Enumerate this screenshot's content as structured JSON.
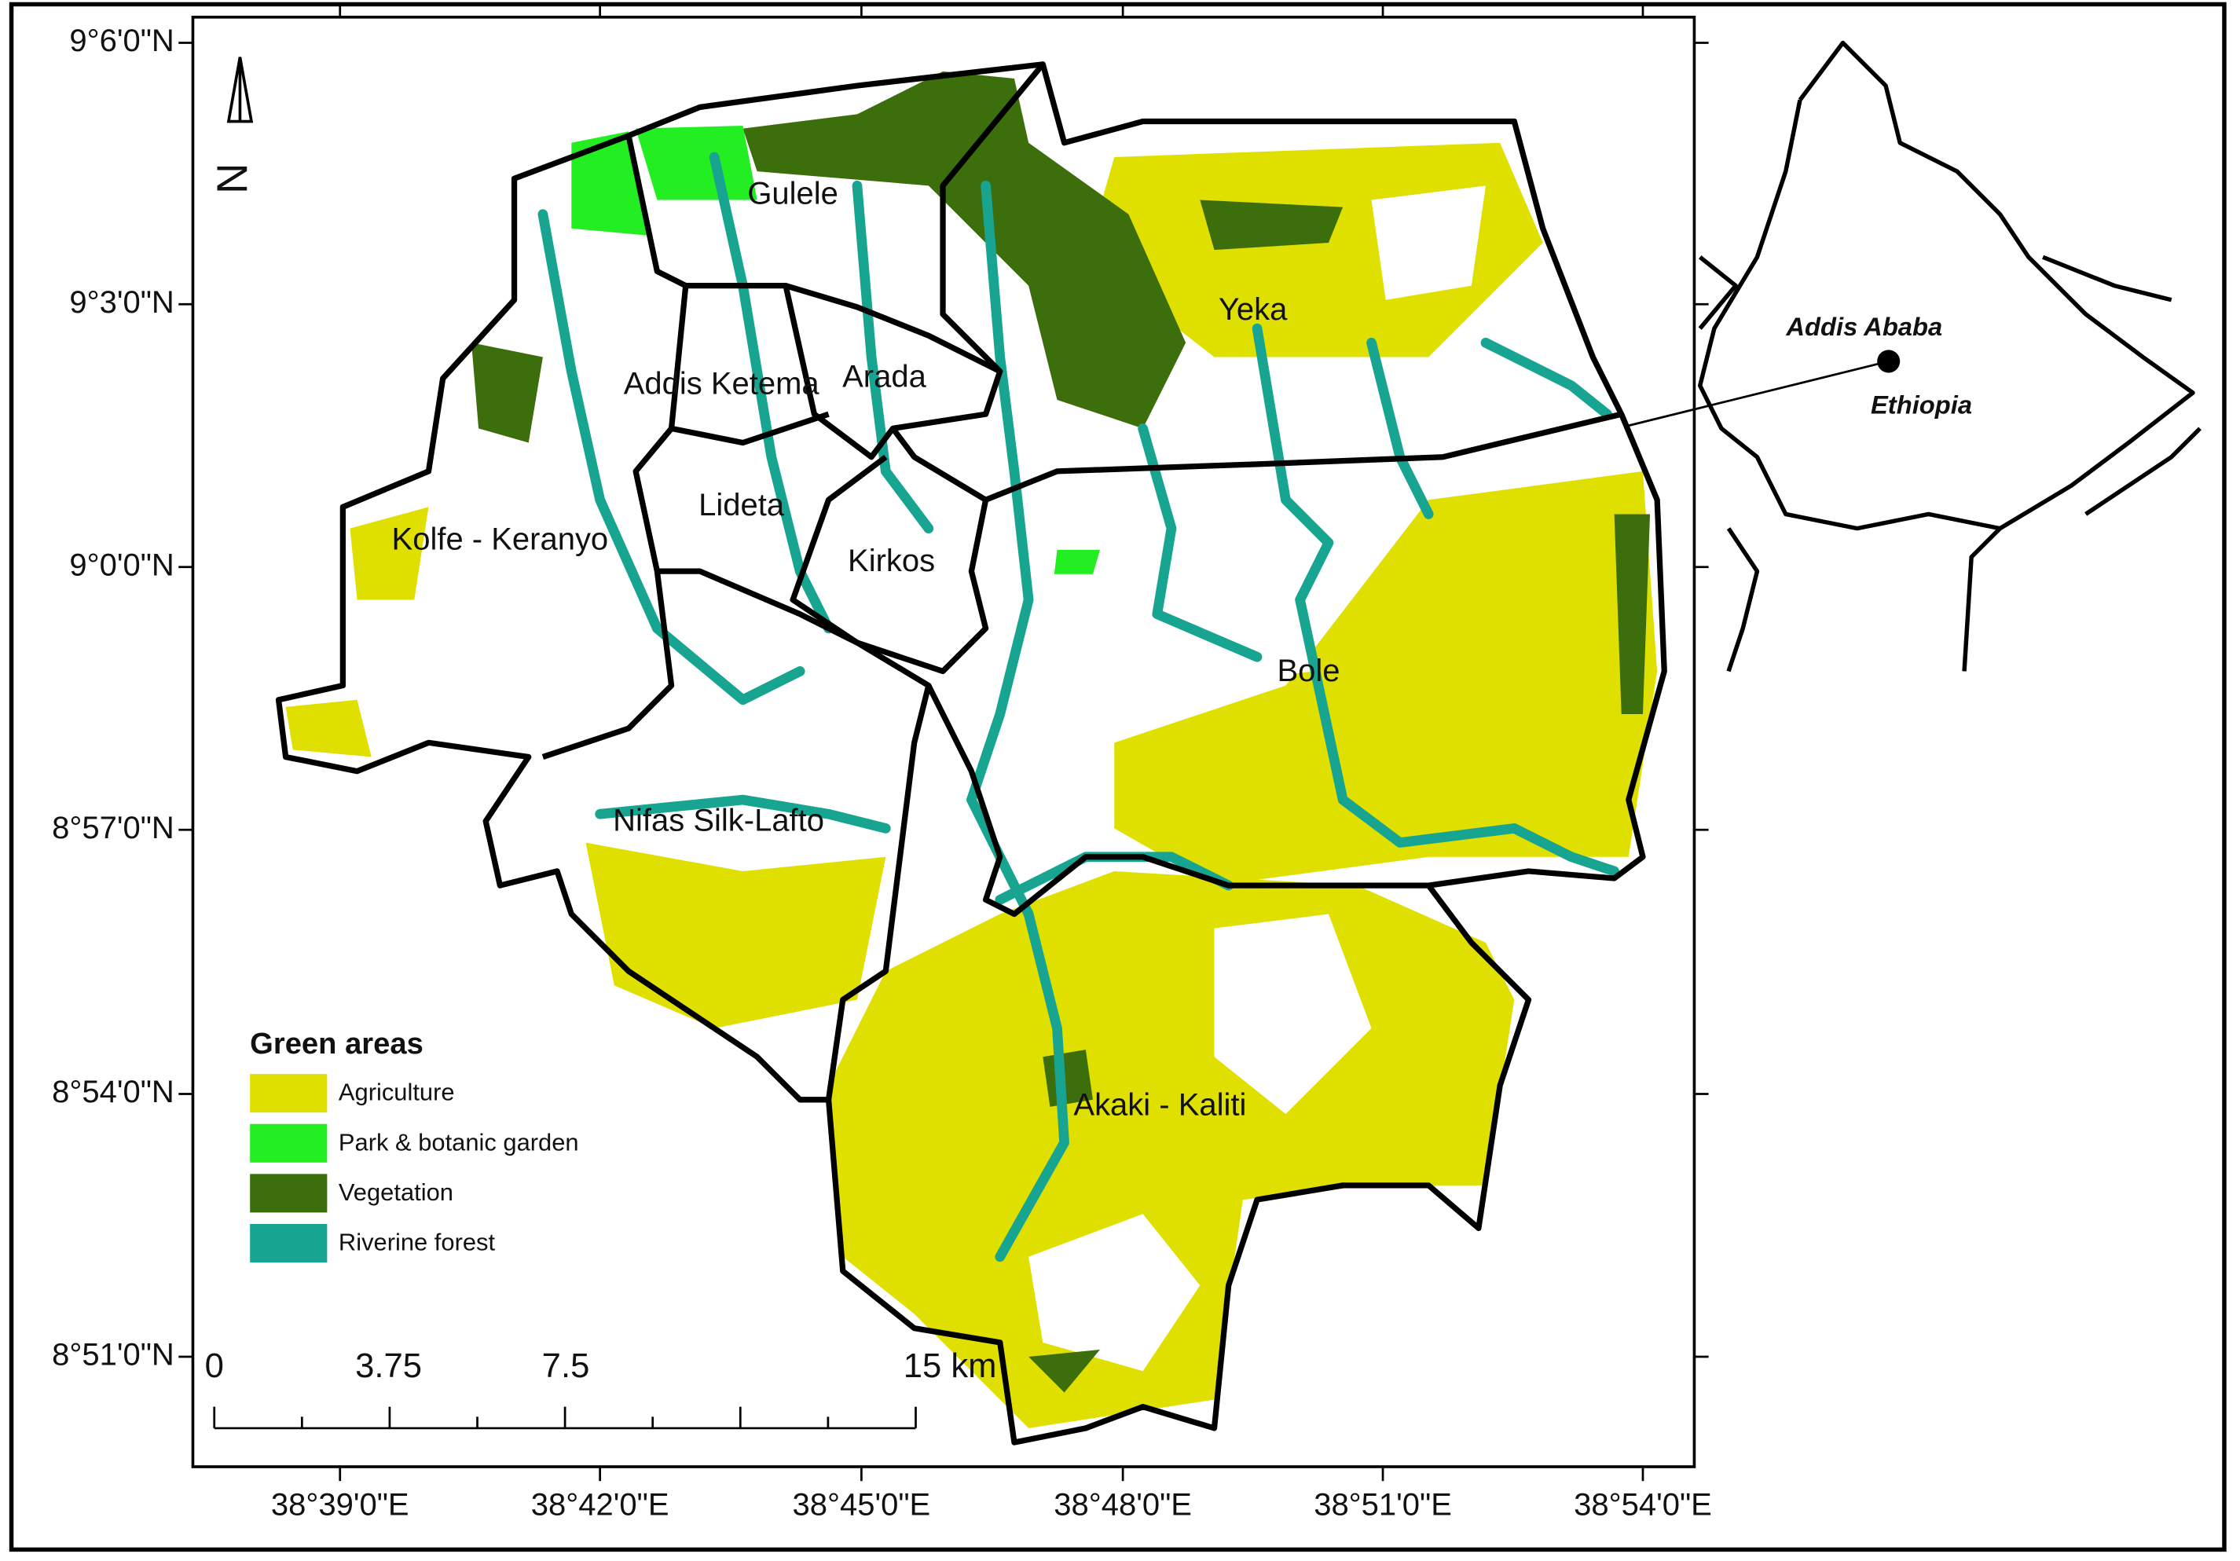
{
  "map": {
    "lat_labels": [
      "9°6'0\"N",
      "9°3'0\"N",
      "9°0'0\"N",
      "8°57'0\"N",
      "8°54'0\"N",
      "8°51'0\"N"
    ],
    "lon_labels": [
      "38°39'0\"E",
      "38°42'0\"E",
      "38°45'0\"E",
      "38°48'0\"E",
      "38°51'0\"E",
      "38°54'0\"E"
    ],
    "districts": [
      "Gulele",
      "Yeka",
      "Addis Ketema",
      "Arada",
      "Lideta",
      "Kirkos",
      "Kolfe - Keranyo",
      "Bole",
      "Nifas Silk-Lafto",
      "Akaki - Kaliti"
    ],
    "north": "N",
    "legend": {
      "title": "Green areas",
      "items": [
        {
          "label": "Agriculture",
          "color": "#dfe000"
        },
        {
          "label": "Park & botanic garden",
          "color": "#22ee22"
        },
        {
          "label": "Vegetation",
          "color": "#3c6e0c"
        },
        {
          "label": "Riverine forest",
          "color": "#17a592"
        }
      ]
    },
    "scale_bar": [
      "0",
      "3.75",
      "7.5",
      "15 km"
    ],
    "inset": {
      "city": "Addis Ababa",
      "country": "Ethiopia"
    }
  }
}
